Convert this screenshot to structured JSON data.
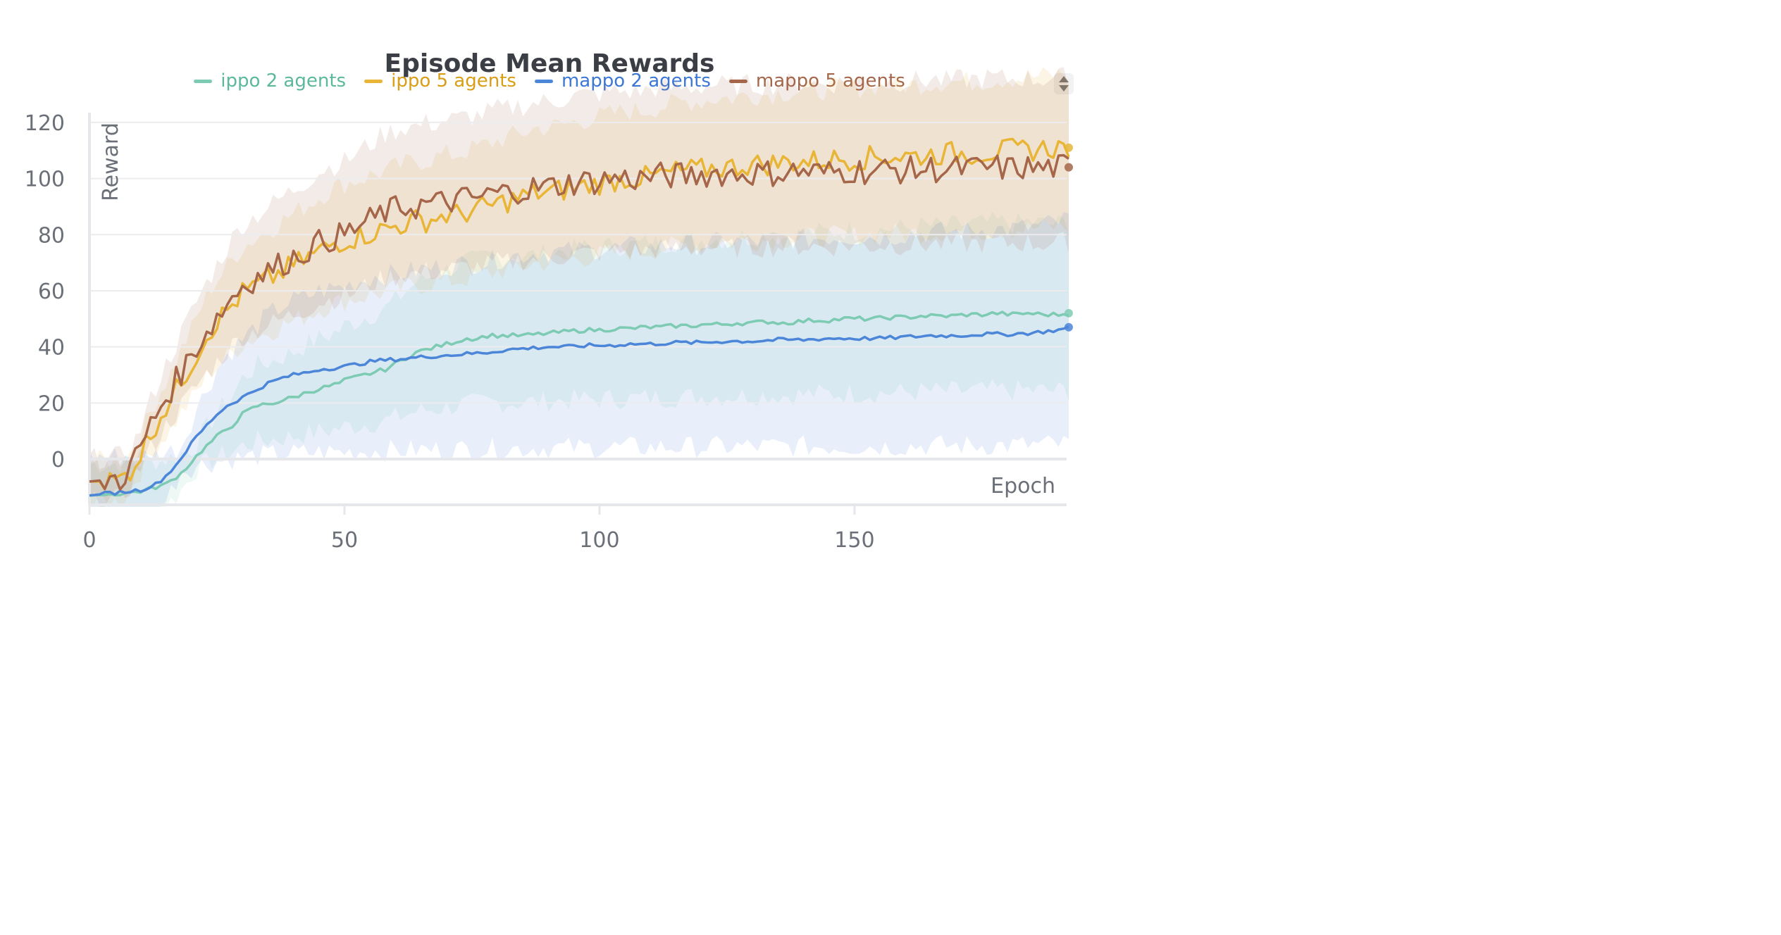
{
  "chart_data": {
    "type": "line",
    "title": "Episode Mean Rewards",
    "xlabel": "Epoch",
    "ylabel": "Reward",
    "xlim": [
      0,
      192
    ],
    "ylim": [
      -18,
      135
    ],
    "xticks": [
      0,
      50,
      100,
      150
    ],
    "yticks": [
      0,
      20,
      40,
      60,
      80,
      100,
      120
    ],
    "grid": "horizontal",
    "legend_position": "top-center",
    "series": [
      {
        "name": "ippo 2 agents",
        "color": "#7ecbb4",
        "x": [
          0,
          5,
          10,
          15,
          18,
          20,
          22,
          25,
          28,
          30,
          33,
          36,
          38,
          40,
          43,
          45,
          47,
          49,
          50,
          52,
          54,
          56,
          58,
          60,
          62,
          64,
          66,
          68,
          70,
          72,
          74,
          76,
          78,
          80,
          82,
          85,
          88,
          91,
          94,
          97,
          100,
          103,
          106,
          109,
          112,
          115,
          118,
          121,
          124,
          127,
          130,
          133,
          136,
          139,
          142,
          145,
          148,
          151,
          154,
          157,
          160,
          163,
          166,
          169,
          172,
          175,
          178,
          181,
          184,
          187,
          190,
          193
        ],
        "y": [
          -13,
          -12.5,
          -11.5,
          -9,
          -5,
          -1,
          3,
          8,
          12,
          16,
          19,
          20,
          21,
          22,
          24,
          25,
          26,
          27,
          28,
          29,
          30,
          31,
          32,
          34,
          36,
          38,
          39,
          40,
          41,
          42,
          43,
          43,
          44,
          44,
          44,
          44,
          44.5,
          45,
          45.5,
          46,
          46,
          46.5,
          46.5,
          47,
          47,
          47.5,
          47.5,
          48,
          48,
          48.5,
          48.5,
          49,
          48.5,
          49,
          49.5,
          49.5,
          50,
          50,
          50,
          50.5,
          50.5,
          51,
          51,
          51,
          51.5,
          51.5,
          52,
          51.5,
          52,
          51.5,
          51.5,
          52
        ]
      },
      {
        "name": "ippo 5 agents",
        "color": "#e8b536",
        "x": [
          0,
          3,
          6,
          8,
          10,
          12,
          14,
          16,
          18,
          20,
          22,
          24,
          26,
          28,
          30,
          32,
          34,
          36,
          38,
          40,
          42,
          44,
          46,
          48,
          50,
          52,
          54,
          56,
          58,
          60,
          62,
          64,
          66,
          68,
          70,
          72,
          74,
          76,
          78,
          80,
          82,
          84,
          86,
          88,
          90,
          93,
          96,
          99,
          102,
          105,
          108,
          111,
          114,
          117,
          120,
          123,
          126,
          129,
          132,
          135,
          138,
          141,
          144,
          147,
          150,
          153,
          156,
          159,
          162,
          165,
          168,
          171,
          174,
          177,
          180,
          183,
          186,
          189,
          192
        ],
        "y": [
          -8,
          -8,
          -7.5,
          -4,
          2,
          9,
          16,
          21,
          28,
          34,
          41,
          47,
          51,
          55,
          59,
          61,
          63,
          65,
          67,
          69,
          71,
          73,
          75,
          77,
          78,
          79,
          80,
          81,
          82,
          83,
          84,
          85,
          85,
          86,
          87,
          87,
          88,
          89,
          90,
          91,
          92,
          93,
          94,
          95,
          95,
          96,
          97,
          98,
          99,
          100,
          100,
          101,
          102,
          103,
          103,
          104,
          104,
          105,
          105,
          105.5,
          106,
          106,
          106.5,
          107,
          107,
          107.5,
          108,
          108,
          108,
          108.5,
          109,
          109,
          109,
          109.5,
          110,
          110,
          110.5,
          111,
          111
        ]
      },
      {
        "name": "mappo 2 agents",
        "color": "#4c86d9",
        "x": [
          0,
          5,
          10,
          13,
          15,
          17,
          19,
          21,
          23,
          25,
          27,
          29,
          31,
          33,
          35,
          38,
          40,
          43,
          45,
          48,
          50,
          53,
          56,
          60,
          63,
          66,
          70,
          74,
          78,
          82,
          86,
          90,
          94,
          98,
          102,
          106,
          110,
          115,
          120,
          125,
          130,
          135,
          140,
          145,
          150,
          155,
          160,
          165,
          170,
          175,
          180,
          185,
          190,
          193
        ],
        "y": [
          -13,
          -12,
          -11,
          -9,
          -6,
          -2,
          3,
          8,
          12,
          16,
          19,
          21,
          23,
          25,
          27,
          29,
          30,
          31,
          32,
          32.5,
          33,
          34,
          35,
          35.5,
          36,
          36.5,
          37,
          37.5,
          38,
          39,
          39.5,
          40,
          40,
          40.5,
          40.5,
          41,
          41,
          41.5,
          41.5,
          42,
          42,
          42.5,
          42.5,
          43,
          43,
          43,
          43.5,
          44,
          44,
          44.5,
          44.5,
          45,
          46,
          47
        ]
      },
      {
        "name": "mappo 5 agents",
        "color": "#a5664a",
        "x": [
          0,
          3,
          6,
          8,
          10,
          12,
          14,
          16,
          18,
          20,
          22,
          24,
          26,
          28,
          30,
          32,
          34,
          36,
          38,
          40,
          42,
          44,
          46,
          48,
          50,
          52,
          54,
          56,
          58,
          60,
          62,
          64,
          66,
          68,
          70,
          72,
          74,
          76,
          78,
          80,
          82,
          84,
          86,
          88,
          90,
          93,
          96,
          99,
          102,
          105,
          108,
          111,
          114,
          117,
          120,
          123,
          126,
          129,
          132,
          135,
          138,
          141,
          144,
          147,
          150,
          153,
          156,
          159,
          162,
          165,
          168,
          171,
          174,
          177,
          180,
          183,
          186,
          189,
          192
        ],
        "y": [
          -8,
          -7.5,
          -7,
          -3,
          4,
          12,
          19,
          25,
          31,
          37,
          43,
          48,
          53,
          58,
          62,
          64,
          66,
          68,
          70,
          72,
          74,
          76,
          78,
          79,
          80,
          82,
          84,
          86,
          88,
          89,
          90,
          90,
          91,
          91,
          92,
          92,
          93,
          93,
          94,
          95,
          95,
          96,
          96,
          97,
          97,
          98,
          99,
          99,
          100,
          100,
          100,
          101,
          101,
          101,
          101.5,
          102,
          101.5,
          102,
          102,
          102,
          102.5,
          102.5,
          102,
          102.5,
          103,
          102.5,
          103,
          103,
          103,
          103.5,
          103,
          103.5,
          103.5,
          104,
          103.5,
          104,
          103.5,
          104,
          104
        ]
      }
    ]
  }
}
